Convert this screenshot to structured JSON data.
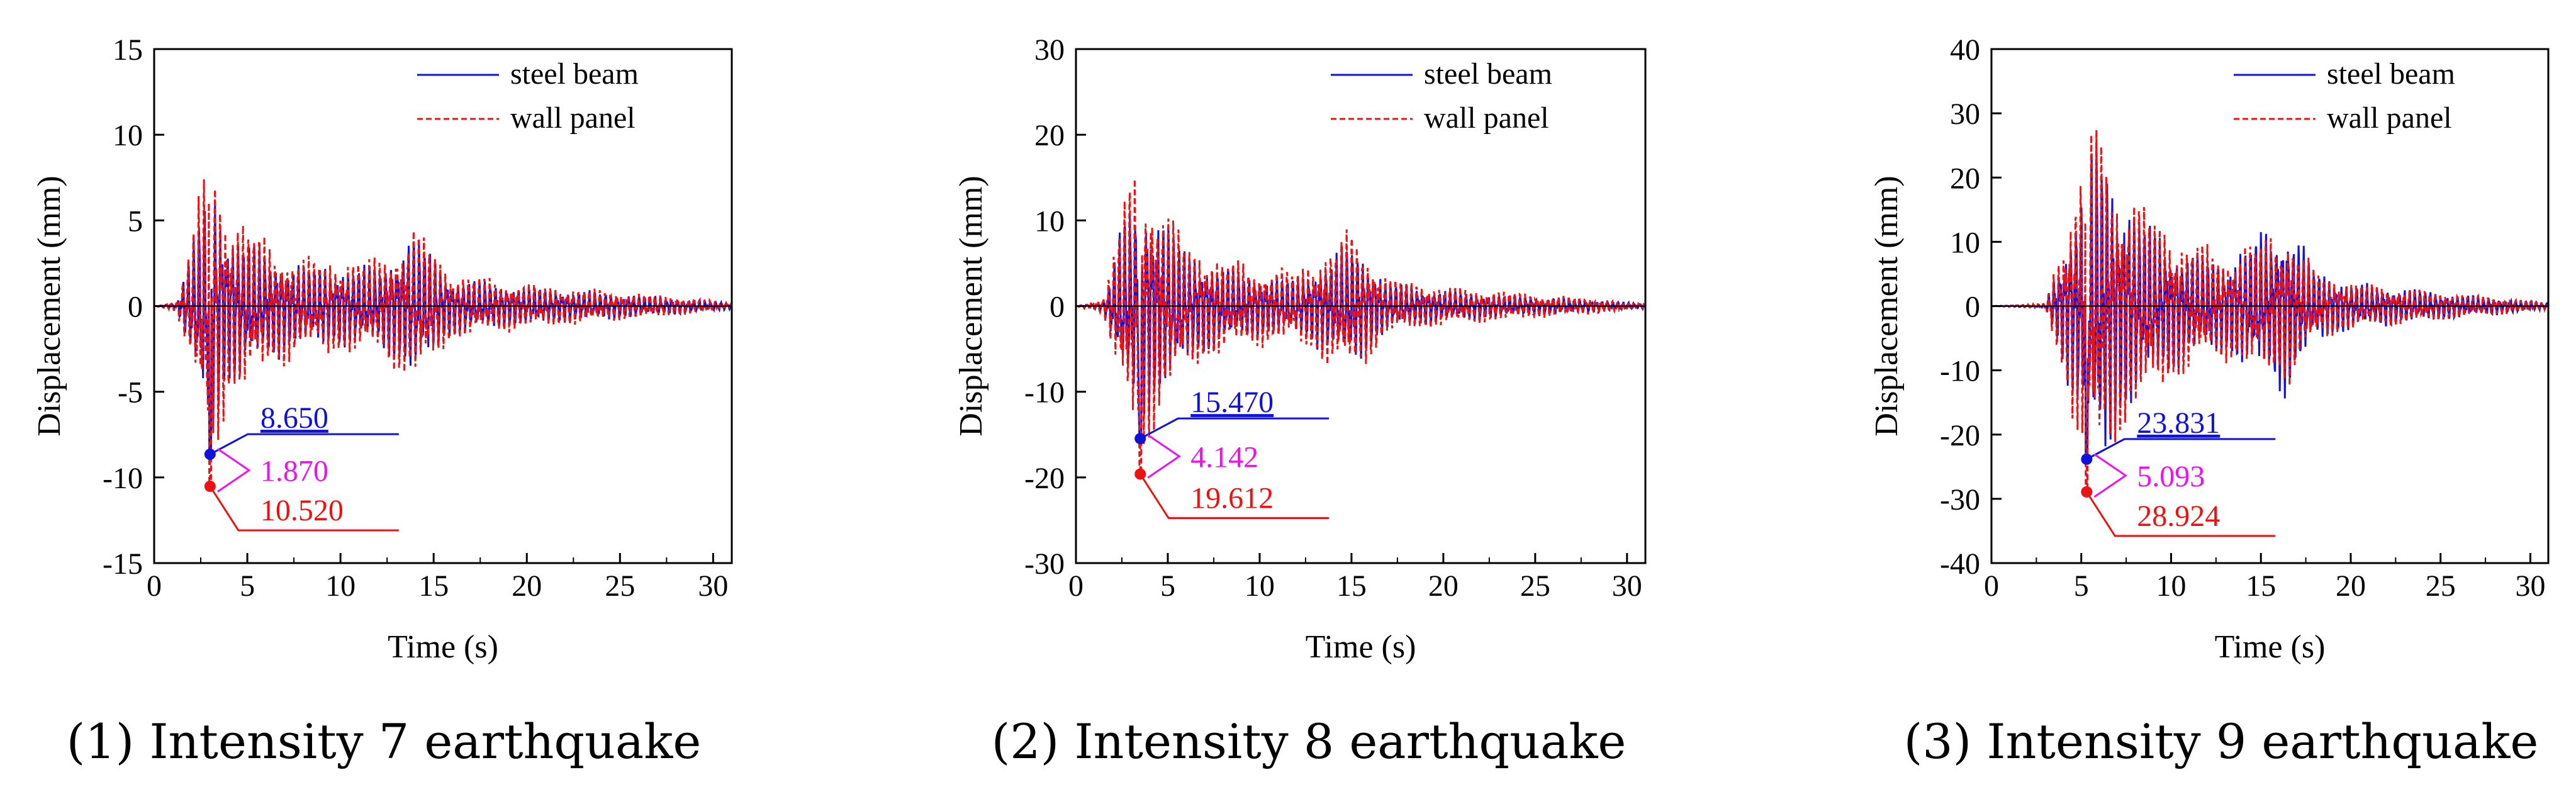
{
  "colors": {
    "steel": "#1111dd",
    "wall": "#ee1111",
    "diff": "#ee11ee",
    "axis": "#000000"
  },
  "chart_data": [
    {
      "type": "line",
      "caption": "(1) Intensity 7 earthquake",
      "xlabel": "Time (s)",
      "ylabel": "Displacement (mm)",
      "xlim": [
        0,
        31
      ],
      "ylim": [
        -15,
        15
      ],
      "xticks": [
        0,
        5,
        10,
        15,
        20,
        25,
        30
      ],
      "yticks": [
        -15,
        -10,
        -5,
        0,
        5,
        10,
        15
      ],
      "legend_position": "top-right",
      "peak_time": 3.0,
      "series": [
        {
          "name": "steel beam",
          "style": "solid",
          "peak_min": -8.65,
          "peak_max": 10.0,
          "envelope": [
            [
              0,
              0
            ],
            [
              1.2,
              0.2
            ],
            [
              2,
              3.5
            ],
            [
              3,
              8.6
            ],
            [
              4,
              5
            ],
            [
              6,
              3.5
            ],
            [
              8,
              2.5
            ],
            [
              10,
              2.5
            ],
            [
              12,
              2.5
            ],
            [
              14,
              4.5
            ],
            [
              16,
              1.8
            ],
            [
              20,
              1.2
            ],
            [
              25,
              0.8
            ],
            [
              28,
              0.5
            ],
            [
              31,
              0.2
            ]
          ]
        },
        {
          "name": "wall panel",
          "style": "dashed",
          "peak_min": -10.52,
          "peak_max": 10.7,
          "envelope": [
            [
              0,
              0
            ],
            [
              1.2,
              0.3
            ],
            [
              2,
              4.2
            ],
            [
              3,
              10.4
            ],
            [
              4,
              6
            ],
            [
              6,
              4.2
            ],
            [
              8,
              3
            ],
            [
              10,
              3
            ],
            [
              12,
              3
            ],
            [
              14,
              5
            ],
            [
              16,
              2.1
            ],
            [
              20,
              1.4
            ],
            [
              25,
              0.9
            ],
            [
              28,
              0.6
            ],
            [
              31,
              0.2
            ]
          ]
        }
      ],
      "annotations": [
        {
          "series": "steel beam",
          "label": "8.650"
        },
        {
          "series": "difference",
          "label": "1.870"
        },
        {
          "series": "wall panel",
          "label": "10.520"
        }
      ]
    },
    {
      "type": "line",
      "caption": "(2) Intensity 8 earthquake",
      "xlabel": "Time (s)",
      "ylabel": "Displacement (mm)",
      "xlim": [
        0,
        31
      ],
      "ylim": [
        -30,
        30
      ],
      "xticks": [
        0,
        5,
        10,
        15,
        20,
        25,
        30
      ],
      "yticks": [
        -30,
        -20,
        -10,
        0,
        10,
        20,
        30
      ],
      "legend_position": "top-right",
      "peak_time": 3.5,
      "series": [
        {
          "name": "steel beam",
          "style": "solid",
          "peak_min": -15.47,
          "peak_max": 18.0,
          "envelope": [
            [
              0,
              0
            ],
            [
              1.5,
              0.5
            ],
            [
              2.5,
              10
            ],
            [
              3.5,
              15.4
            ],
            [
              4.5,
              12
            ],
            [
              6,
              7
            ],
            [
              8,
              5
            ],
            [
              10,
              4
            ],
            [
              12,
              3.5
            ],
            [
              15,
              8
            ],
            [
              17,
              3
            ],
            [
              20,
              2
            ],
            [
              25,
              1.2
            ],
            [
              28,
              0.8
            ],
            [
              31,
              0.3
            ]
          ]
        },
        {
          "name": "wall panel",
          "style": "dashed",
          "peak_min": -19.612,
          "peak_max": 19.5,
          "envelope": [
            [
              0,
              0
            ],
            [
              1.5,
              1
            ],
            [
              2.5,
              12
            ],
            [
              3.5,
              19.5
            ],
            [
              4.5,
              14
            ],
            [
              6,
              8
            ],
            [
              8,
              6
            ],
            [
              10,
              5
            ],
            [
              12,
              4.5
            ],
            [
              15,
              9.5
            ],
            [
              17,
              3.5
            ],
            [
              20,
              2.5
            ],
            [
              25,
              1.5
            ],
            [
              28,
              1
            ],
            [
              31,
              0.3
            ]
          ]
        }
      ],
      "annotations": [
        {
          "series": "steel beam",
          "label": "15.470"
        },
        {
          "series": "difference",
          "label": "4.142"
        },
        {
          "series": "wall panel",
          "label": "19.612"
        }
      ]
    },
    {
      "type": "line",
      "caption": "(3) Intensity 9 earthquake",
      "xlabel": "Time (s)",
      "ylabel": "Displacement (mm)",
      "xlim": [
        0,
        31
      ],
      "ylim": [
        -40,
        40
      ],
      "xticks": [
        0,
        5,
        10,
        15,
        20,
        25,
        30
      ],
      "yticks": [
        -40,
        -30,
        -20,
        -10,
        0,
        10,
        20,
        30,
        40
      ],
      "legend_position": "top-right",
      "peak_time": 5.3,
      "series": [
        {
          "name": "steel beam",
          "style": "solid",
          "peak_min": -23.831,
          "peak_max": 32.0,
          "envelope": [
            [
              0,
              0
            ],
            [
              3,
              0.3
            ],
            [
              4,
              10
            ],
            [
              5.3,
              23.8
            ],
            [
              6,
              30
            ],
            [
              7,
              20
            ],
            [
              9,
              13
            ],
            [
              11,
              9
            ],
            [
              13,
              8
            ],
            [
              16.5,
              15
            ],
            [
              18,
              6
            ],
            [
              20,
              4
            ],
            [
              23,
              3
            ],
            [
              26,
              2
            ],
            [
              28,
              1.5
            ],
            [
              31,
              0.5
            ]
          ]
        },
        {
          "name": "wall panel",
          "style": "dashed",
          "peak_min": -28.924,
          "peak_max": 30.0,
          "envelope": [
            [
              0,
              0
            ],
            [
              3,
              0.4
            ],
            [
              4,
              12
            ],
            [
              5.3,
              28.9
            ],
            [
              6,
              29
            ],
            [
              7,
              22
            ],
            [
              9,
              15
            ],
            [
              11,
              11
            ],
            [
              13,
              9
            ],
            [
              16.5,
              13
            ],
            [
              18,
              6
            ],
            [
              20,
              4
            ],
            [
              23,
              3
            ],
            [
              26,
              2
            ],
            [
              28,
              1.5
            ],
            [
              31,
              0.5
            ]
          ]
        }
      ],
      "annotations": [
        {
          "series": "steel beam",
          "label": "23.831"
        },
        {
          "series": "difference",
          "label": "5.093"
        },
        {
          "series": "wall panel",
          "label": "28.924"
        }
      ]
    }
  ]
}
